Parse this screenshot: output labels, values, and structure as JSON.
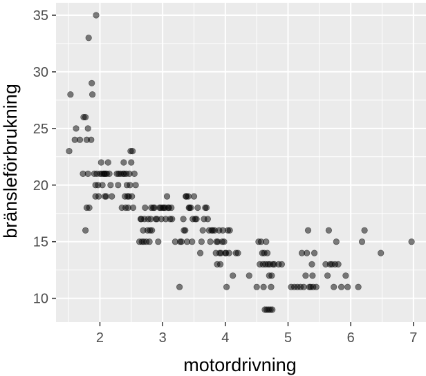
{
  "chart_data": {
    "type": "scatter",
    "xlabel": "motordrivning",
    "ylabel": "bränsleförbrukning",
    "xlim": [
      1.3,
      7.2
    ],
    "ylim": [
      7.9,
      36.1
    ],
    "x_ticks": [
      "2",
      "3",
      "4",
      "5",
      "6",
      "7"
    ],
    "y_ticks": [
      "10",
      "15",
      "20",
      "25",
      "30",
      "35"
    ],
    "grid": true,
    "panel_color": "#ebebeb",
    "grid_color": "#ffffff",
    "point_color": "#000000",
    "point_opacity": 0.5,
    "series": [
      {
        "points": [
          [
            1.51,
            23
          ],
          [
            1.53,
            28
          ],
          [
            1.6,
            24
          ],
          [
            1.62,
            25
          ],
          [
            1.68,
            24
          ],
          [
            1.73,
            21
          ],
          [
            1.74,
            26
          ],
          [
            1.77,
            26
          ],
          [
            1.77,
            16
          ],
          [
            1.79,
            24
          ],
          [
            1.79,
            18
          ],
          [
            1.81,
            25
          ],
          [
            1.81,
            21
          ],
          [
            1.82,
            33
          ],
          [
            1.83,
            18
          ],
          [
            1.86,
            24
          ],
          [
            1.87,
            29
          ],
          [
            1.88,
            28
          ],
          [
            1.91,
            21
          ],
          [
            1.93,
            19
          ],
          [
            1.93,
            20
          ],
          [
            1.94,
            35
          ],
          [
            1.95,
            21
          ],
          [
            1.97,
            20
          ],
          [
            1.98,
            19
          ],
          [
            2.0,
            21
          ],
          [
            2.02,
            22
          ],
          [
            2.03,
            21
          ],
          [
            2.04,
            20
          ],
          [
            2.06,
            21
          ],
          [
            2.07,
            21
          ],
          [
            2.08,
            19
          ],
          [
            2.09,
            21
          ],
          [
            2.1,
            19
          ],
          [
            2.11,
            21
          ],
          [
            2.13,
            22
          ],
          [
            2.15,
            21
          ],
          [
            2.17,
            20
          ],
          [
            2.19,
            19
          ],
          [
            2.27,
            21
          ],
          [
            2.29,
            20
          ],
          [
            2.3,
            21
          ],
          [
            2.33,
            21
          ],
          [
            2.35,
            18
          ],
          [
            2.37,
            21
          ],
          [
            2.38,
            22
          ],
          [
            2.39,
            21
          ],
          [
            2.4,
            19
          ],
          [
            2.41,
            18
          ],
          [
            2.42,
            21
          ],
          [
            2.43,
            20
          ],
          [
            2.44,
            19
          ],
          [
            2.45,
            18
          ],
          [
            2.46,
            19
          ],
          [
            2.47,
            21
          ],
          [
            2.48,
            20
          ],
          [
            2.49,
            23
          ],
          [
            2.5,
            22
          ],
          [
            2.51,
            19
          ],
          [
            2.52,
            23
          ],
          [
            2.53,
            18
          ],
          [
            2.55,
            21
          ],
          [
            2.57,
            20
          ],
          [
            2.63,
            15
          ],
          [
            2.65,
            17
          ],
          [
            2.66,
            17
          ],
          [
            2.67,
            15
          ],
          [
            2.69,
            16
          ],
          [
            2.7,
            15
          ],
          [
            2.71,
            17
          ],
          [
            2.72,
            18
          ],
          [
            2.74,
            15
          ],
          [
            2.76,
            16
          ],
          [
            2.77,
            17
          ],
          [
            2.79,
            15
          ],
          [
            2.8,
            16
          ],
          [
            2.81,
            17
          ],
          [
            2.82,
            18
          ],
          [
            2.83,
            16
          ],
          [
            2.85,
            18
          ],
          [
            2.87,
            18
          ],
          [
            2.89,
            17
          ],
          [
            2.91,
            17
          ],
          [
            2.93,
            15
          ],
          [
            2.95,
            18
          ],
          [
            2.97,
            18
          ],
          [
            2.98,
            17
          ],
          [
            3.0,
            18
          ],
          [
            3.02,
            18
          ],
          [
            3.04,
            18
          ],
          [
            3.05,
            17
          ],
          [
            3.07,
            19
          ],
          [
            3.09,
            18
          ],
          [
            3.1,
            18
          ],
          [
            3.12,
            17
          ],
          [
            3.14,
            18
          ],
          [
            3.15,
            17
          ],
          [
            3.2,
            15
          ],
          [
            3.27,
            11
          ],
          [
            3.28,
            15
          ],
          [
            3.3,
            15
          ],
          [
            3.33,
            17
          ],
          [
            3.34,
            16
          ],
          [
            3.36,
            16
          ],
          [
            3.37,
            19
          ],
          [
            3.38,
            19
          ],
          [
            3.39,
            15
          ],
          [
            3.41,
            19
          ],
          [
            3.42,
            18
          ],
          [
            3.43,
            18
          ],
          [
            3.45,
            18
          ],
          [
            3.47,
            15
          ],
          [
            3.48,
            17
          ],
          [
            3.5,
            19
          ],
          [
            3.52,
            17
          ],
          [
            3.54,
            17
          ],
          [
            3.56,
            18
          ],
          [
            3.6,
            14
          ],
          [
            3.62,
            15
          ],
          [
            3.64,
            16
          ],
          [
            3.66,
            17
          ],
          [
            3.68,
            18
          ],
          [
            3.7,
            18
          ],
          [
            3.72,
            17
          ],
          [
            3.74,
            16
          ],
          [
            3.76,
            15
          ],
          [
            3.78,
            16
          ],
          [
            3.8,
            16
          ],
          [
            3.83,
            16
          ],
          [
            3.85,
            14
          ],
          [
            3.86,
            15
          ],
          [
            3.87,
            13
          ],
          [
            3.88,
            15
          ],
          [
            3.9,
            16
          ],
          [
            3.91,
            14
          ],
          [
            3.92,
            13
          ],
          [
            3.93,
            14
          ],
          [
            3.95,
            15
          ],
          [
            3.96,
            16
          ],
          [
            3.98,
            15
          ],
          [
            4.0,
            14
          ],
          [
            4.01,
            14
          ],
          [
            4.02,
            11
          ],
          [
            4.04,
            16
          ],
          [
            4.06,
            14
          ],
          [
            4.07,
            16
          ],
          [
            4.12,
            12
          ],
          [
            4.17,
            14
          ],
          [
            4.2,
            14
          ],
          [
            4.38,
            12
          ],
          [
            4.5,
            11
          ],
          [
            4.53,
            15
          ],
          [
            4.55,
            13
          ],
          [
            4.57,
            15
          ],
          [
            4.59,
            14
          ],
          [
            4.6,
            13
          ],
          [
            4.61,
            11
          ],
          [
            4.62,
            14
          ],
          [
            4.63,
            9
          ],
          [
            4.64,
            13
          ],
          [
            4.65,
            15
          ],
          [
            4.66,
            9
          ],
          [
            4.67,
            14
          ],
          [
            4.68,
            13
          ],
          [
            4.69,
            9
          ],
          [
            4.7,
            12
          ],
          [
            4.71,
            13
          ],
          [
            4.72,
            9
          ],
          [
            4.73,
            11
          ],
          [
            4.74,
            12
          ],
          [
            4.75,
            9
          ],
          [
            4.76,
            13
          ],
          [
            4.78,
            13
          ],
          [
            4.85,
            13
          ],
          [
            4.9,
            13
          ],
          [
            5.05,
            11
          ],
          [
            5.1,
            11
          ],
          [
            5.15,
            11
          ],
          [
            5.2,
            11
          ],
          [
            5.22,
            14
          ],
          [
            5.25,
            11
          ],
          [
            5.28,
            12
          ],
          [
            5.3,
            14
          ],
          [
            5.32,
            16
          ],
          [
            5.34,
            11
          ],
          [
            5.36,
            11
          ],
          [
            5.38,
            13
          ],
          [
            5.39,
            12
          ],
          [
            5.4,
            11
          ],
          [
            5.42,
            14
          ],
          [
            5.45,
            11
          ],
          [
            5.6,
            13
          ],
          [
            5.63,
            12
          ],
          [
            5.65,
            16
          ],
          [
            5.67,
            13
          ],
          [
            5.7,
            13
          ],
          [
            5.73,
            11
          ],
          [
            5.75,
            13
          ],
          [
            5.77,
            15
          ],
          [
            5.8,
            13
          ],
          [
            5.85,
            11
          ],
          [
            5.92,
            12
          ],
          [
            5.95,
            11
          ],
          [
            6.12,
            11
          ],
          [
            6.18,
            15
          ],
          [
            6.22,
            16
          ],
          [
            6.48,
            14
          ],
          [
            6.97,
            15
          ]
        ]
      }
    ]
  }
}
